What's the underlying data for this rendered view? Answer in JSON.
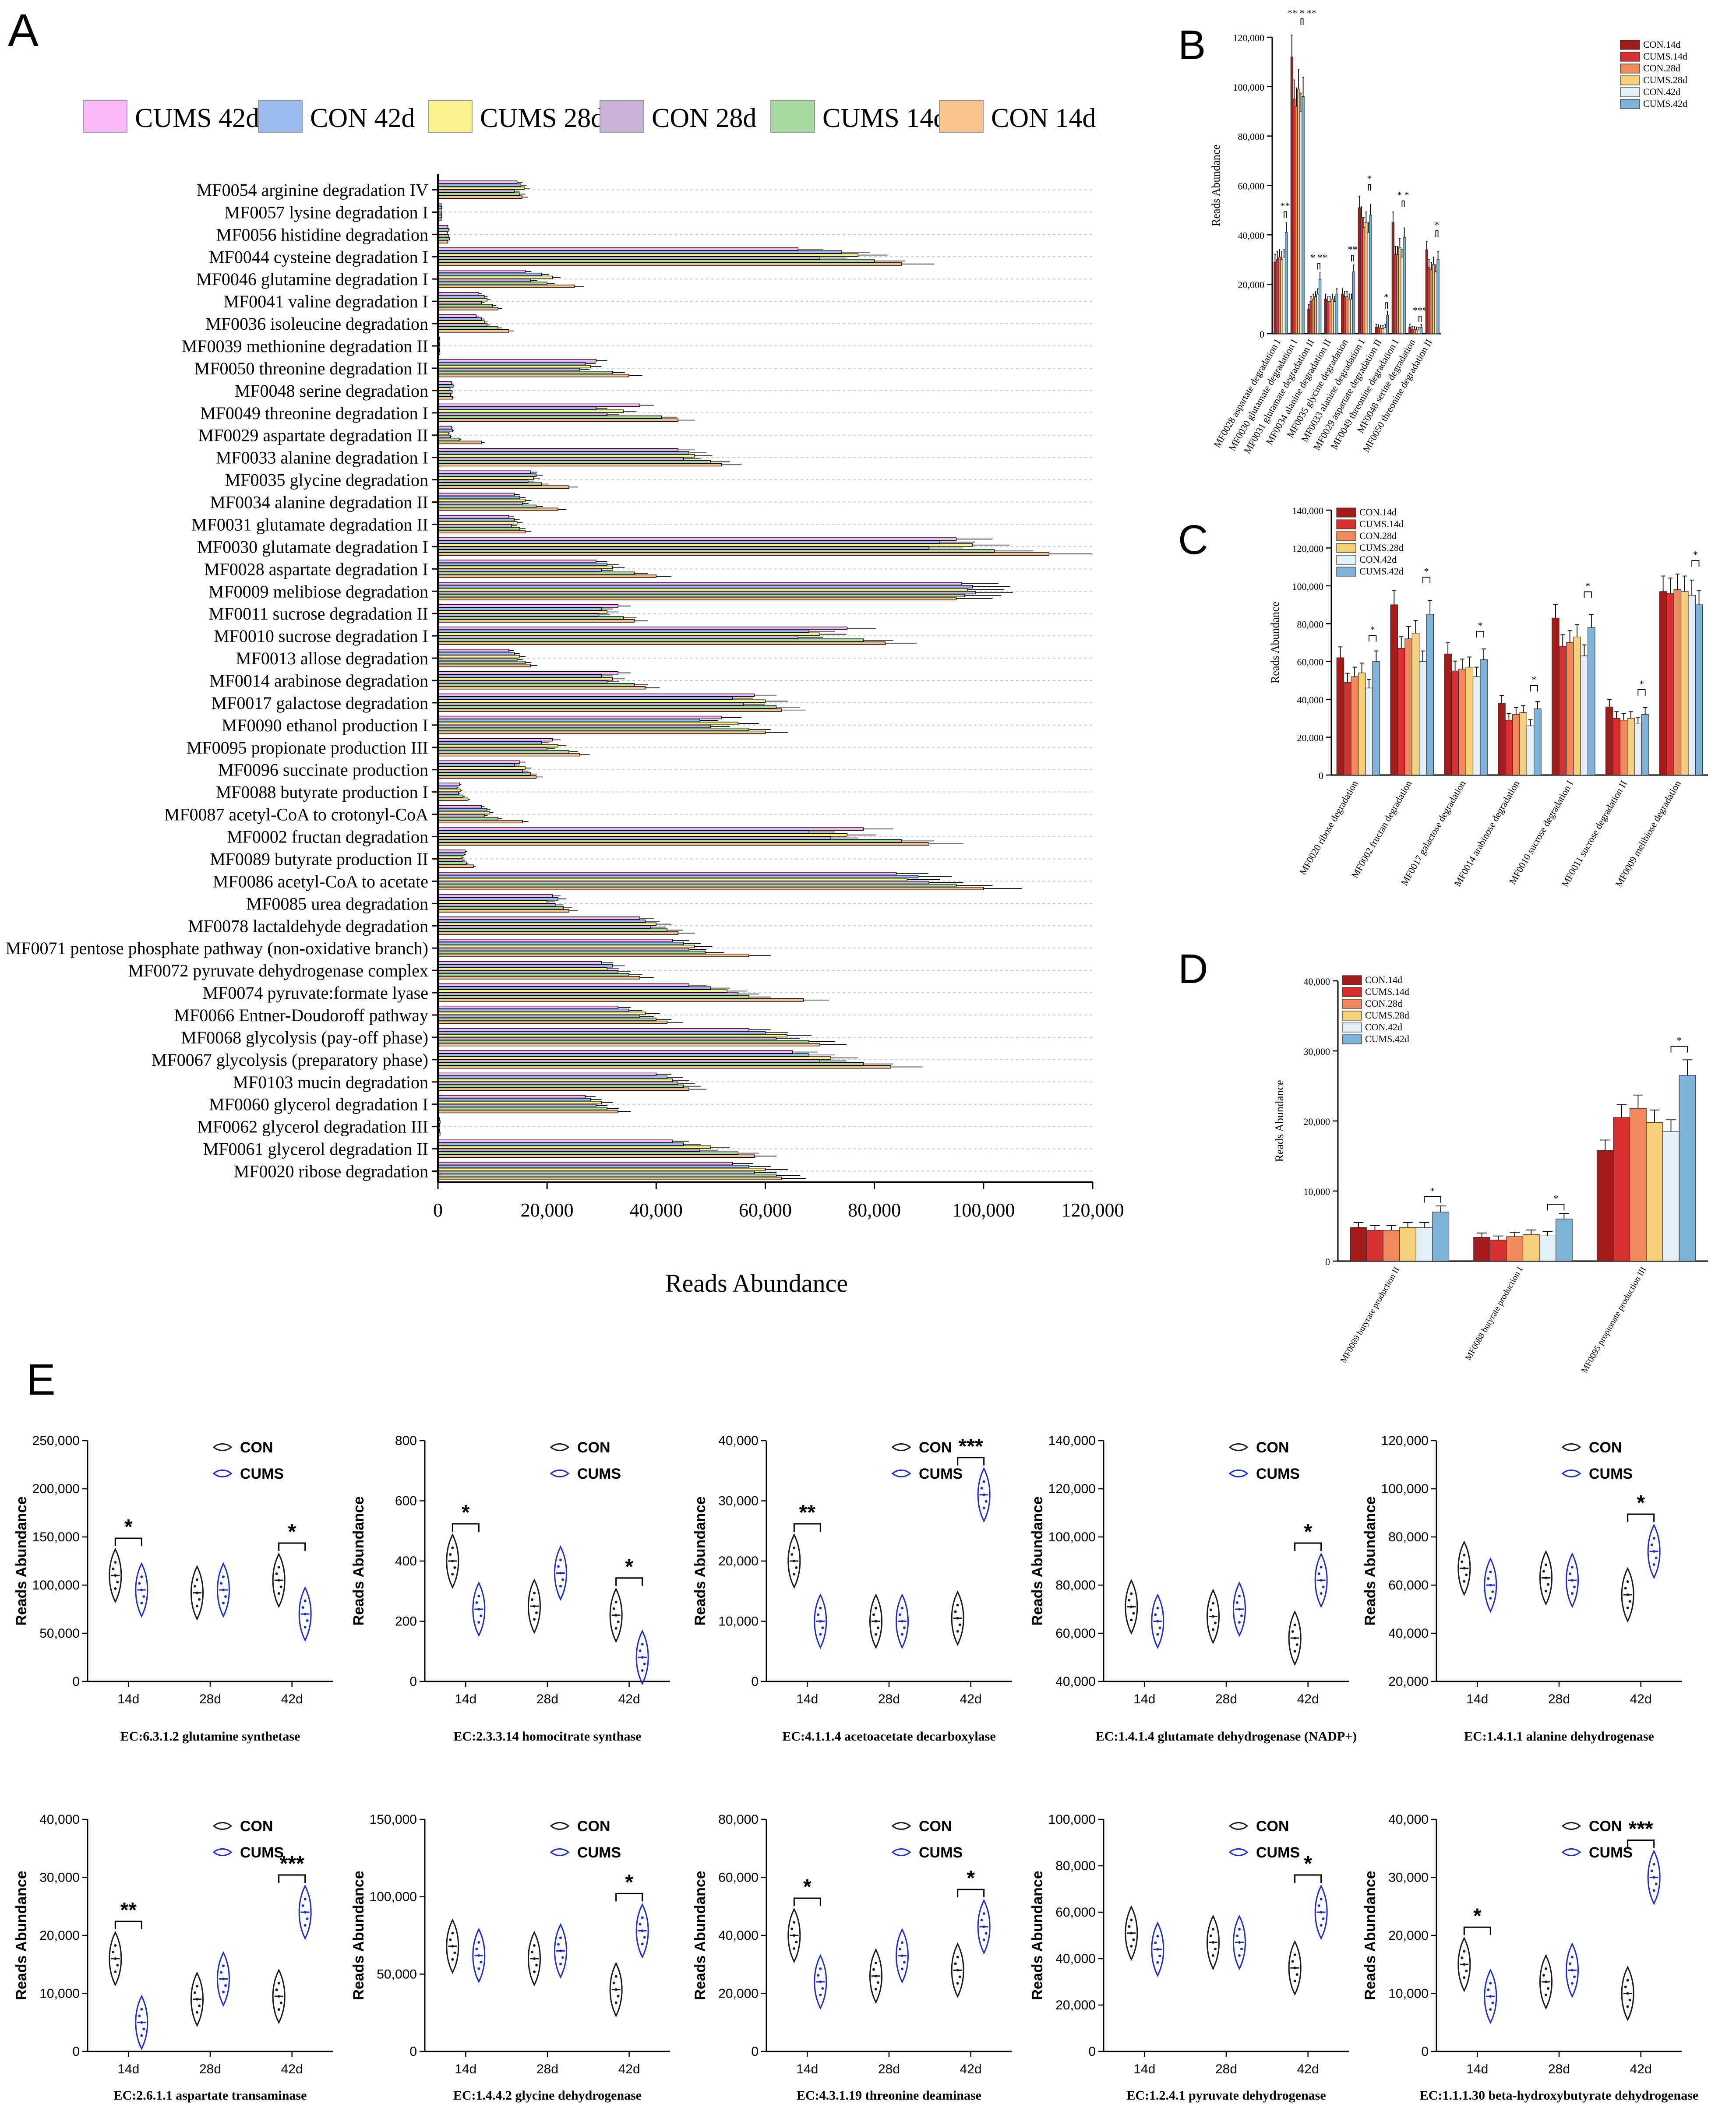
{
  "panel_letters": {
    "a": "A",
    "b": "B",
    "c": "C",
    "d": "D",
    "e": "E"
  },
  "colors": {
    "pathway_series": [
      "#f9b8f9",
      "#9bbcf0",
      "#f8f38c",
      "#c6b3d6",
      "#a6dba0",
      "#f8c28f"
    ],
    "group_bars": [
      "#a31c1c",
      "#d83030",
      "#f08a5d",
      "#f5cf7a",
      "#e3f0f7",
      "#7fb3d8"
    ],
    "con_violin": "#1a1a1a",
    "cums_violin": "#1e2bd1"
  },
  "chart_data": [
    {
      "id": "A",
      "type": "bar",
      "orientation": "horizontal",
      "legend": [
        "CUMS 42d",
        "CON 42d",
        "CUMS 28d",
        "CON 28d",
        "CUMS 14d",
        "CON 14d"
      ],
      "xlabel": "Reads Abundance",
      "xlim": [
        0,
        120000
      ],
      "xticks": [
        "0",
        "20,000",
        "40,000",
        "60,000",
        "80,000",
        "100,000",
        "120,000"
      ],
      "categories": [
        "MF0054 arginine degradation IV",
        "MF0057 lysine degradation I",
        "MF0056 histidine degradation",
        "MF0044 cysteine degradation I",
        "MF0046 glutamine degradation I",
        "MF0041 valine degradation I",
        "MF0036 isoleucine degradation",
        "MF0039 methionine degradation II",
        "MF0050 threonine degradation II",
        "MF0048 serine degradation",
        "MF0049 threonine degradation I",
        "MF0029 aspartate degradation II",
        "MF0033 alanine degradation I",
        "MF0035 glycine degradation",
        "MF0034 alanine degradation II",
        "MF0031 glutamate degradation II",
        "MF0030 glutamate degradation I",
        "MF0028 aspartate degradation I",
        "MF0009 melibiose degradation",
        "MF0011 sucrose degradation II",
        "MF0010 sucrose degradation I",
        "MF0013 allose degradation",
        "MF0014 arabinose degradation",
        "MF0017 galactose degradation",
        "MF0090 ethanol production I",
        "MF0095 propionate production III",
        "MF0096 succinate production",
        "MF0088 butyrate production I",
        "MF0087 acetyl-CoA to crotonyl-CoA",
        "MF0002 fructan degradation",
        "MF0089 butyrate production II",
        "MF0086 acetyl-CoA to acetate",
        "MF0085 urea degradation",
        "MF0078 lactaldehyde degradation",
        "MF0071 pentose phosphate pathway (non-oxidative branch)",
        "MF0072 pyruvate dehydrogenase complex",
        "MF0074 pyruvate:formate lyase",
        "MF0066 Entner-Doudoroff pathway",
        "MF0068 glycolysis (pay-off phase)",
        "MF0067 glycolysis (preparatory phase)",
        "MF0103 mucin degradation",
        "MF0060 glycerol degradation I",
        "MF0062 glycerol degradation III",
        "MF0061 glycerol degradation II",
        "MF0020 ribose degradation"
      ],
      "values": [
        [
          14500,
          15200,
          15800,
          14000,
          15000,
          15400
        ],
        [
          600,
          700,
          600,
          650,
          700,
          600
        ],
        [
          1800,
          2000,
          1700,
          1900,
          2100,
          1800
        ],
        [
          66000,
          74000,
          77000,
          70000,
          80000,
          85000
        ],
        [
          16000,
          19000,
          21000,
          17000,
          20000,
          25000
        ],
        [
          7500,
          8500,
          9000,
          8000,
          10000,
          11000
        ],
        [
          7000,
          8000,
          8500,
          9000,
          11000,
          13000
        ],
        [
          300,
          350,
          300,
          350,
          300,
          350
        ],
        [
          29000,
          27000,
          28000,
          26000,
          32000,
          35000
        ],
        [
          2500,
          2800,
          2200,
          2600,
          2300,
          2700
        ],
        [
          37000,
          29000,
          34000,
          31000,
          41000,
          44000
        ],
        [
          2500,
          2700,
          2000,
          2300,
          4000,
          8000
        ],
        [
          44000,
          46000,
          47000,
          45000,
          50000,
          52000
        ],
        [
          17000,
          18000,
          17500,
          16500,
          19000,
          24000
        ],
        [
          14000,
          15000,
          16000,
          15500,
          18000,
          22000
        ],
        [
          13000,
          14000,
          14500,
          13500,
          15000,
          16000
        ],
        [
          95000,
          92000,
          98000,
          90000,
          102000,
          112000
        ],
        [
          29000,
          31000,
          32000,
          30000,
          36000,
          40000
        ],
        [
          96000,
          98000,
          97000,
          98500,
          96500,
          95000
        ],
        [
          33000,
          30000,
          31000,
          29500,
          34000,
          36000
        ],
        [
          75000,
          68000,
          70000,
          66000,
          78000,
          82000
        ],
        [
          13000,
          14000,
          15000,
          14500,
          16000,
          17000
        ],
        [
          33000,
          30000,
          32000,
          31000,
          36000,
          38000
        ],
        [
          58000,
          54000,
          60000,
          56000,
          62000,
          63000
        ],
        [
          52000,
          48000,
          55000,
          50000,
          57000,
          60000
        ],
        [
          21000,
          19000,
          22000,
          20000,
          24000,
          26000
        ],
        [
          15000,
          14000,
          16000,
          15500,
          17000,
          18000
        ],
        [
          4000,
          3500,
          4200,
          3800,
          4600,
          5500
        ],
        [
          8000,
          9000,
          9500,
          8500,
          11000,
          15500
        ],
        [
          78000,
          68000,
          75000,
          72000,
          85000,
          90000
        ],
        [
          5000,
          4800,
          4400,
          4600,
          5200,
          6500
        ],
        [
          84000,
          88000,
          86000,
          90000,
          95000,
          100000
        ],
        [
          21000,
          22000,
          20000,
          21500,
          23000,
          24000
        ],
        [
          37000,
          38000,
          40000,
          39000,
          42000,
          44000
        ],
        [
          43000,
          45000,
          47000,
          46000,
          49000,
          57000
        ],
        [
          30000,
          32000,
          31000,
          33000,
          35000,
          37000
        ],
        [
          46000,
          50000,
          53000,
          55000,
          57000,
          67000
        ],
        [
          33000,
          35000,
          38000,
          37000,
          40000,
          42000
        ],
        [
          57000,
          60000,
          64000,
          62000,
          68000,
          70000
        ],
        [
          65000,
          68000,
          72000,
          70000,
          78000,
          83000
        ],
        [
          40000,
          42000,
          43000,
          44000,
          45000,
          46000
        ],
        [
          27000,
          28000,
          30000,
          29000,
          31000,
          33000
        ],
        [
          300,
          400,
          300,
          350,
          300,
          400
        ],
        [
          43000,
          45000,
          50000,
          48000,
          55000,
          58000
        ],
        [
          54000,
          57000,
          60000,
          58000,
          62000,
          63000
        ]
      ]
    },
    {
      "id": "B",
      "type": "bar",
      "ylabel": "Reads Abundance",
      "ylim": [
        0,
        120000
      ],
      "yticks": [
        "0",
        "20,000",
        "40,000",
        "60,000",
        "80,000",
        "100,000",
        "120,000"
      ],
      "legend": [
        "CON.14d",
        "CUMS.14d",
        "CON.28d",
        "CUMS.28d",
        "CON.42d",
        "CUMS.42d"
      ],
      "categories": [
        "MF0028 aspartate degradation I",
        "MF0030 glutamate degradation I",
        "MF0031 glutamate degradation II",
        "MF0034 alanine degradation II",
        "MF0035 glycine degradation",
        "MF0033 alanine degradation I",
        "MF0029 aspartate degradation II",
        "MF0049 threonine degradation I",
        "MF0048 serine degradation",
        "MF0050 threonine degradation II"
      ],
      "values": [
        [
          29000,
          30000,
          31000,
          30000,
          31000,
          41000
        ],
        [
          112000,
          95000,
          92000,
          99000,
          90000,
          96000
        ],
        [
          10000,
          13000,
          14000,
          15000,
          16000,
          22000
        ],
        [
          14000,
          13000,
          13000,
          14000,
          13000,
          16000
        ],
        [
          16000,
          15000,
          15000,
          14000,
          14000,
          25000
        ],
        [
          51000,
          47000,
          43000,
          45000,
          41000,
          48000
        ],
        [
          2600,
          2400,
          2200,
          2000,
          2500,
          7500
        ],
        [
          45000,
          32000,
          32000,
          35000,
          31000,
          39000
        ],
        [
          2600,
          1800,
          1800,
          1500,
          1500,
          2500
        ],
        [
          34000,
          27000,
          26000,
          28000,
          25000,
          30000
        ]
      ],
      "annotations": [
        "**",
        "** * **",
        "* **",
        "",
        "**",
        "*",
        "*",
        "* *",
        "***",
        "*"
      ]
    },
    {
      "id": "C",
      "type": "bar",
      "ylabel": "Reads Abundance",
      "ylim": [
        0,
        140000
      ],
      "yticks": [
        "0",
        "20,000",
        "40,000",
        "60,000",
        "80,000",
        "100,000",
        "120,000",
        "140,000"
      ],
      "legend": [
        "CON.14d",
        "CUMS.14d",
        "CON.28d",
        "CUMS.28d",
        "CON.42d",
        "CUMS.42d"
      ],
      "categories": [
        "MF0020 ribose degradation",
        "MF0002 fructan degradation",
        "MF0017 galactose degradation",
        "MF0014 arabinose degradation",
        "MF0010 sucrose degradation I",
        "MF0011 sucrose degradation II",
        "MF0009 melibiose degradation"
      ],
      "values": [
        [
          62000,
          49000,
          52000,
          54000,
          46000,
          60000
        ],
        [
          90000,
          67000,
          72000,
          75000,
          60000,
          85000
        ],
        [
          64000,
          55000,
          56000,
          57000,
          52000,
          61000
        ],
        [
          38000,
          29000,
          32000,
          33000,
          26000,
          35000
        ],
        [
          83000,
          68000,
          70000,
          73000,
          63000,
          78000
        ],
        [
          36000,
          30000,
          29000,
          30000,
          27000,
          32000
        ],
        [
          97000,
          96000,
          98000,
          97000,
          95000,
          90000
        ]
      ],
      "annotations": [
        "*",
        "*",
        "*",
        "*",
        "*",
        "*",
        "*"
      ]
    },
    {
      "id": "D",
      "type": "bar",
      "ylabel": "Reads Abundance",
      "ylim": [
        0,
        40000
      ],
      "yticks": [
        "0",
        "10,000",
        "20,000",
        "30,000",
        "40,000"
      ],
      "legend": [
        "CON.14d",
        "CUMS.14d",
        "CON.28d",
        "CUMS.28d",
        "CON.42d",
        "CUMS.42d"
      ],
      "categories": [
        "MF0089 butyrate production II",
        "MF0088 butyrate production I",
        "MF0095 propionate production III"
      ],
      "values": [
        [
          4800,
          4400,
          4400,
          4800,
          4800,
          7000
        ],
        [
          3400,
          3000,
          3500,
          3800,
          3600,
          6000
        ],
        [
          15800,
          20500,
          21800,
          19800,
          18500,
          26500
        ]
      ],
      "annotations": [
        "*",
        "*",
        "*"
      ]
    },
    {
      "id": "E",
      "type": "violin",
      "legend": [
        "CON",
        "CUMS"
      ],
      "ylabel": "Reads Abundance",
      "groups": [
        "14d",
        "28d",
        "42d"
      ],
      "panels": [
        {
          "title": "EC:6.3.1.2 glutamine synthetase",
          "ylim": [
            0,
            250000
          ],
          "yticks": [
            "0",
            "50,000",
            "100,000",
            "150,000",
            "200,000",
            "250,000"
          ],
          "con": [
            110000,
            92000,
            105000
          ],
          "cums": [
            95000,
            95000,
            70000
          ],
          "sig": [
            "*",
            "",
            "*"
          ]
        },
        {
          "title": "EC:2.3.3.14 homocitrate synthase",
          "ylim": [
            0,
            800
          ],
          "yticks": [
            "0",
            "200",
            "400",
            "600",
            "800"
          ],
          "con": [
            400,
            250,
            220
          ],
          "cums": [
            240,
            360,
            80
          ],
          "sig": [
            "*",
            "",
            "*"
          ]
        },
        {
          "title": "EC:4.1.1.4 acetoacetate decarboxylase",
          "ylim": [
            0,
            40000
          ],
          "yticks": [
            "0",
            "10,000",
            "20,000",
            "30,000",
            "40,000"
          ],
          "con": [
            20000,
            10000,
            10500
          ],
          "cums": [
            10000,
            10000,
            31000
          ],
          "sig": [
            "**",
            "",
            "***"
          ]
        },
        {
          "title": "EC:1.4.1.4 glutamate dehydrogenase (NADP+)",
          "ylim": [
            40000,
            140000
          ],
          "yticks": [
            "40,000",
            "60,000",
            "80,000",
            "100,000",
            "120,000",
            "140,000"
          ],
          "con": [
            71000,
            67000,
            58000
          ],
          "cums": [
            65000,
            70000,
            82000
          ],
          "sig": [
            "",
            "",
            "*"
          ]
        },
        {
          "title": "EC:1.4.1.1 alanine dehydrogenase",
          "ylim": [
            20000,
            120000
          ],
          "yticks": [
            "20,000",
            "40,000",
            "60,000",
            "80,000",
            "100,000",
            "120,000"
          ],
          "con": [
            67000,
            63000,
            56000
          ],
          "cums": [
            60000,
            62000,
            74000
          ],
          "sig": [
            "",
            "",
            "*"
          ]
        },
        {
          "title": "EC:2.6.1.1 aspartate transaminase",
          "ylim": [
            0,
            40000
          ],
          "yticks": [
            "0",
            "10,000",
            "20,000",
            "30,000",
            "40,000"
          ],
          "con": [
            16000,
            9000,
            9500
          ],
          "cums": [
            5000,
            12500,
            24000
          ],
          "sig": [
            "**",
            "",
            "***"
          ]
        },
        {
          "title": "EC:1.4.4.2 glycine dehydrogenase",
          "ylim": [
            0,
            150000
          ],
          "yticks": [
            "0",
            "50,000",
            "100,000",
            "150,000"
          ],
          "con": [
            68000,
            60000,
            40000
          ],
          "cums": [
            62000,
            65000,
            78000
          ],
          "sig": [
            "",
            "",
            "*"
          ]
        },
        {
          "title": "EC:4.3.1.19 threonine deaminase",
          "ylim": [
            0,
            80000
          ],
          "yticks": [
            "0",
            "20,000",
            "40,000",
            "60,000",
            "80,000"
          ],
          "con": [
            40000,
            26000,
            28000
          ],
          "cums": [
            24000,
            33000,
            43000
          ],
          "sig": [
            "*",
            "",
            "*"
          ]
        },
        {
          "title": "EC:1.2.4.1 pyruvate dehydrogenase",
          "ylim": [
            0,
            100000
          ],
          "yticks": [
            "0",
            "20,000",
            "40,000",
            "60,000",
            "80,000",
            "100,000"
          ],
          "con": [
            51000,
            47000,
            36000
          ],
          "cums": [
            44000,
            47000,
            60000
          ],
          "sig": [
            "",
            "",
            "*"
          ]
        },
        {
          "title": "EC:1.1.1.30 beta-hydroxybutyrate dehydrogenase",
          "ylim": [
            0,
            40000
          ],
          "yticks": [
            "0",
            "10,000",
            "20,000",
            "30,000",
            "40,000"
          ],
          "con": [
            15000,
            12000,
            10000
          ],
          "cums": [
            9500,
            14000,
            30000
          ],
          "sig": [
            "*",
            "",
            "***"
          ]
        }
      ]
    }
  ]
}
